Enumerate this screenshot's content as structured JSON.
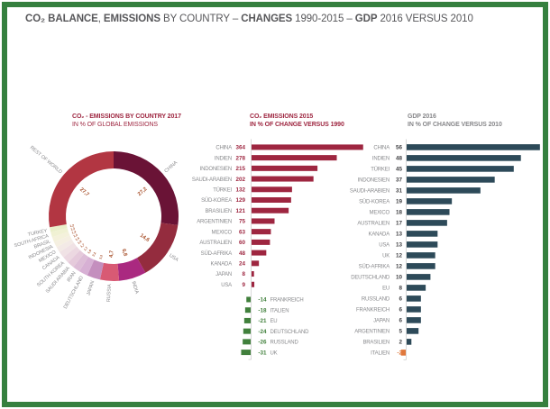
{
  "header": {
    "title_parts": [
      {
        "text": "CO₂ BALANCE",
        "bold": true
      },
      {
        "text": ", ",
        "bold": false
      },
      {
        "text": "EMISSIONS",
        "bold": true
      },
      {
        "text": " BY COUNTRY – ",
        "bold": false
      },
      {
        "text": "CHANGES",
        "bold": true
      },
      {
        "text": " 1990-2015 – ",
        "bold": false
      },
      {
        "text": "GDP",
        "bold": true
      },
      {
        "text": " 2016 VERSUS 2010",
        "bold": false
      }
    ]
  },
  "colors": {
    "frame_green": "#35803f",
    "title_gray": "#57575a",
    "accent_red": "#9e2640",
    "accent_green": "#41803c",
    "accent_slate": "#2d4a59",
    "accent_orange": "#e0783c",
    "axis_gray": "#c9c9c9",
    "label_gray": "#898a8d",
    "donut_value_rust": "#a8512c"
  },
  "chart_data": [
    {
      "type": "pie",
      "title": "CO₂ - EMISSIONS BY COUNTRY 2017",
      "subtitle": "IN % OF GLOBAL EMISSIONS",
      "unit": "% of global emissions",
      "label_color": "#8b8b8e",
      "value_color": "#a8512c",
      "slices": [
        {
          "label": "CHINA",
          "value": 27.2,
          "display": "27,2",
          "color": "#6a1336"
        },
        {
          "label": "USA",
          "value": 14.6,
          "display": "14,6",
          "color": "#942c3e"
        },
        {
          "label": "INDIA",
          "value": 6.8,
          "display": "6,8",
          "color": "#aa2980"
        },
        {
          "label": "RUSSIA",
          "value": 4.7,
          "display": "4,7",
          "color": "#d85a74"
        },
        {
          "label": "JAPAN",
          "value": 3.3,
          "display": "3,3",
          "color": "#c48fbe"
        },
        {
          "label": "DEUTSCHLAND",
          "value": 2.2,
          "display": "2,2",
          "color": "#d7b0d4"
        },
        {
          "label": "IRAN",
          "value": 1.8,
          "display": "1,8",
          "color": "#ddbdd7"
        },
        {
          "label": "SAUDI ARABIA",
          "value": 1.7,
          "display": "1,7",
          "color": "#e5cadb"
        },
        {
          "label": "SOUTH KOREA",
          "value": 1.7,
          "display": "1,7",
          "color": "#ecd8e1"
        },
        {
          "label": "CANADA",
          "value": 1.6,
          "display": "1,6",
          "color": "#f0e2e5"
        },
        {
          "label": "MEXICO",
          "value": 1.4,
          "display": "1,4",
          "color": "#f3eae6"
        },
        {
          "label": "INDONESIA",
          "value": 1.4,
          "display": "1,4",
          "color": "#f5efe1"
        },
        {
          "label": "BRASIL",
          "value": 1.3,
          "display": "1,3",
          "color": "#f4f1db"
        },
        {
          "label": "SOUTH AFRICA",
          "value": 1.3,
          "display": "1,3",
          "color": "#f0f1d3"
        },
        {
          "label": "TURKEY",
          "value": 1.2,
          "display": "1,2",
          "color": "#eaefca"
        },
        {
          "label": "REST OF WORLD",
          "value": 27.7,
          "display": "27,7",
          "color": "#b23642"
        }
      ]
    },
    {
      "type": "bar",
      "title": "CO₂ EMISSIONS 2015",
      "subtitle": "IN % OF CHANGE VERSUS 1990",
      "bar_color_positive": "#9e2640",
      "bar_color_negative": "#41803c",
      "value_color_positive": "#9e2640",
      "value_color_negative": "#41803c",
      "label_color": "#898a8d",
      "categories": [
        "CHINA",
        "INDIEN",
        "INDONESIEN",
        "SAUDI-ARABIEN",
        "TÜRKEI",
        "SÜD-KOREA",
        "BRASILIEN",
        "ARGENTINIEN",
        "MEXICO",
        "AUSTRALIEN",
        "SÜD-AFRIKA",
        "KANADA",
        "JAPAN",
        "USA",
        "FRANKREICH",
        "ITALIEN",
        "EU",
        "DEUTSCHLAND",
        "RUSSLAND",
        "UK"
      ],
      "values": [
        364,
        278,
        215,
        202,
        132,
        129,
        121,
        75,
        63,
        60,
        48,
        24,
        8,
        9,
        -14,
        -18,
        -21,
        -24,
        -26,
        -31
      ]
    },
    {
      "type": "bar",
      "title": "GDP 2016",
      "subtitle": "IN % OF CHANGE VERSUS 2010",
      "bar_color_positive": "#2d4a59",
      "bar_color_negative": "#e0783c",
      "value_color_positive": "#3f3f42",
      "value_color_negative": "#e0783c",
      "label_color": "#898a8d",
      "categories": [
        "CHINA",
        "INDIEN",
        "TÜRKEI",
        "INDONESIEN",
        "SAUDI-ARABIEN",
        "SÜD-KOREA",
        "MEXICO",
        "AUSTRALIEN",
        "KANADA",
        "USA",
        "UK",
        "SÜD-AFRIKA",
        "DEUTSCHLAND",
        "EU",
        "RUSSLAND",
        "FRANKREICH",
        "JAPAN",
        "ARGENTINIEN",
        "BRASILIEN",
        "ITALIEN"
      ],
      "values": [
        56,
        48,
        45,
        37,
        31,
        19,
        18,
        17,
        13,
        13,
        12,
        12,
        10,
        8,
        6,
        6,
        6,
        5,
        2,
        -2
      ]
    }
  ]
}
